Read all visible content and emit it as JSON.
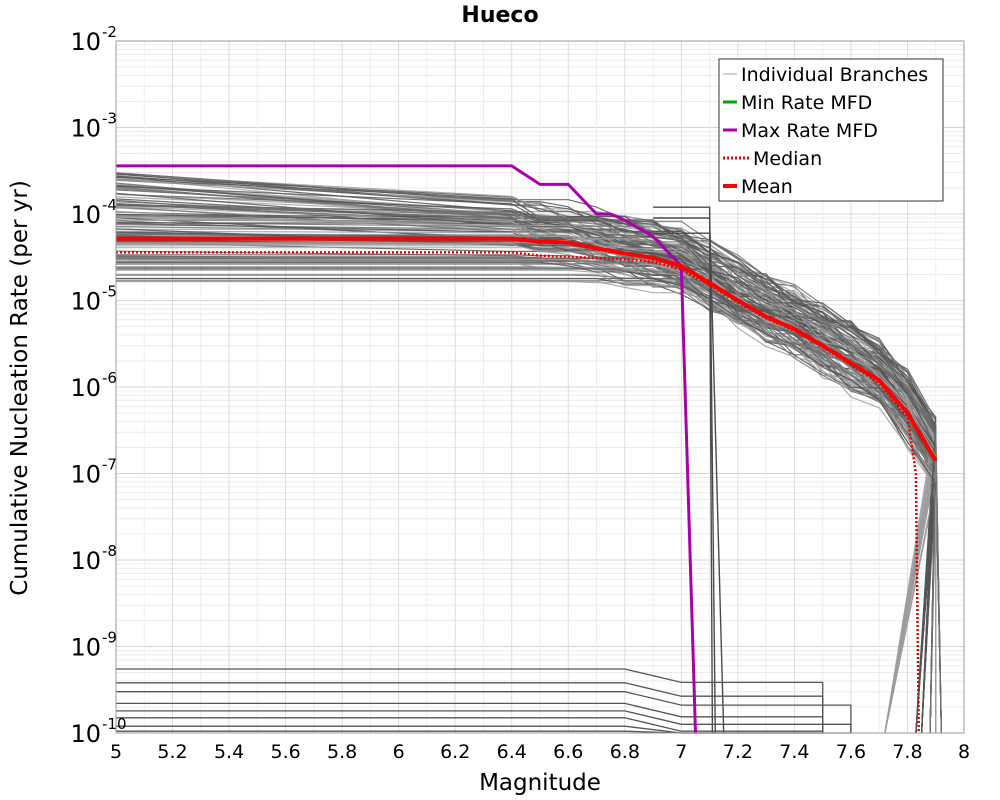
{
  "chart_data": {
    "type": "line",
    "title": "Hueco",
    "xlabel": "Magnitude",
    "ylabel": "Cumulative Nucleation Rate (per yr)",
    "xlim": [
      5,
      8
    ],
    "ylim_log10": [
      -10,
      -2
    ],
    "y_scale": "log",
    "grid": true,
    "x_ticks": [
      "5",
      "5.2",
      "5.4",
      "5.6",
      "5.8",
      "6",
      "6.2",
      "6.4",
      "6.6",
      "6.8",
      "7",
      "7.2",
      "7.4",
      "7.6",
      "7.8",
      "8"
    ],
    "y_ticks": [
      {
        "base": "10",
        "exp": "-2",
        "value": 0.01
      },
      {
        "base": "10",
        "exp": "-3",
        "value": 0.001
      },
      {
        "base": "10",
        "exp": "-4",
        "value": 0.0001
      },
      {
        "base": "10",
        "exp": "-5",
        "value": 1e-05
      },
      {
        "base": "10",
        "exp": "-6",
        "value": 1e-06
      },
      {
        "base": "10",
        "exp": "-7",
        "value": 1e-07
      },
      {
        "base": "10",
        "exp": "-8",
        "value": 1e-08
      },
      {
        "base": "10",
        "exp": "-9",
        "value": 1e-09
      },
      {
        "base": "10",
        "exp": "-10",
        "value": 1e-10
      }
    ],
    "legend": {
      "position": "top-right",
      "entries": [
        {
          "label": "Individual Branches",
          "color": "#a0a0a0",
          "style": "thin"
        },
        {
          "label": "Min Rate MFD",
          "color": "#00aa00",
          "style": "solid"
        },
        {
          "label": "Max Rate MFD",
          "color": "#aa00aa",
          "style": "solid"
        },
        {
          "label": "Median",
          "color": "#ee0000",
          "style": "dotted"
        },
        {
          "label": "Mean",
          "color": "#ff0000",
          "style": "thick"
        }
      ]
    },
    "series": [
      {
        "name": "Mean",
        "color": "#ff0000",
        "x": [
          5.0,
          6.4,
          6.5,
          6.6,
          6.7,
          6.8,
          6.9,
          7.0,
          7.1,
          7.2,
          7.3,
          7.4,
          7.5,
          7.6,
          7.7,
          7.8,
          7.9
        ],
        "y": [
          5.2e-05,
          5.2e-05,
          4.8e-05,
          4.7e-05,
          4e-05,
          3.5e-05,
          3.1e-05,
          2.5e-05,
          1.6e-05,
          1e-05,
          6.5e-06,
          4.7e-06,
          3e-06,
          1.9e-06,
          1.2e-06,
          5e-07,
          1.4e-07
        ]
      },
      {
        "name": "Median",
        "color": "#ee0000",
        "x": [
          5.0,
          6.4,
          6.5,
          6.6,
          6.7,
          6.8,
          6.9,
          7.0,
          7.1,
          7.2,
          7.3,
          7.4,
          7.5,
          7.6,
          7.7,
          7.8,
          7.83,
          7.84
        ],
        "y": [
          3.6e-05,
          3.6e-05,
          3.3e-05,
          3.2e-05,
          3.1e-05,
          3e-05,
          2.8e-05,
          2.3e-05,
          1.5e-05,
          9.5e-06,
          6.2e-06,
          4.5e-06,
          2.9e-06,
          1.8e-06,
          1.1e-06,
          4.5e-07,
          1e-07,
          1e-10
        ]
      },
      {
        "name": "Max Rate MFD",
        "color": "#aa00aa",
        "x": [
          5.0,
          6.4,
          6.5,
          6.6,
          6.7,
          6.75,
          6.8,
          6.9,
          7.0,
          7.05
        ],
        "y": [
          0.00036,
          0.00036,
          0.00022,
          0.00022,
          0.0001,
          0.0001,
          8.5e-05,
          5.5e-05,
          2.5e-05,
          1e-10
        ]
      }
    ]
  }
}
